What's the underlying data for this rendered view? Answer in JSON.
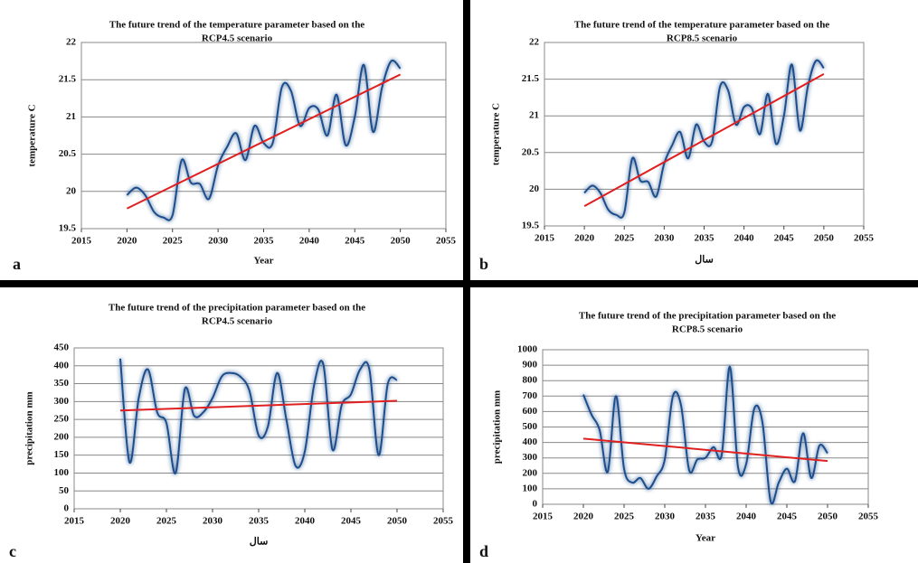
{
  "chart_data": [
    {
      "type": "line",
      "label": "a",
      "title": [
        "The future trend of the temperature parameter based on the",
        "RCP4.5 scenario"
      ],
      "x_label": "Year",
      "y_label": "temperature C",
      "x": [
        2020,
        2021,
        2022,
        2023,
        2024,
        2025,
        2026,
        2027,
        2028,
        2029,
        2030,
        2031,
        2032,
        2033,
        2034,
        2035,
        2036,
        2037,
        2038,
        2039,
        2040,
        2041,
        2042,
        2043,
        2044,
        2045,
        2046,
        2047,
        2048,
        2049,
        2050
      ],
      "series": [
        {
          "color": "#1f4e8c",
          "values": [
            19.95,
            20.05,
            19.95,
            19.72,
            19.65,
            19.68,
            20.42,
            20.12,
            20.1,
            19.9,
            20.35,
            20.6,
            20.78,
            20.42,
            20.88,
            20.65,
            20.65,
            21.4,
            21.35,
            20.88,
            21.12,
            21.1,
            20.75,
            21.3,
            20.62,
            21.0,
            21.7,
            20.8,
            21.4,
            21.75,
            21.65
          ]
        }
      ],
      "trend": {
        "color": "#e02020",
        "x": [
          2020,
          2050
        ],
        "values": [
          19.77,
          21.57
        ]
      },
      "xlim": [
        2015,
        2055
      ],
      "xticks": [
        2015,
        2020,
        2025,
        2030,
        2035,
        2040,
        2045,
        2050,
        2055
      ],
      "ylim": [
        19.5,
        22
      ],
      "yticks": [
        19.5,
        20,
        20.5,
        21,
        21.5,
        22
      ],
      "grid": true
    },
    {
      "type": "line",
      "label": "b",
      "title": [
        "The future trend of the temperature parameter based on the",
        "RCP8.5 scenario"
      ],
      "x_label": "سال",
      "y_label": "temperature C",
      "x": [
        2020,
        2021,
        2022,
        2023,
        2024,
        2025,
        2026,
        2027,
        2028,
        2029,
        2030,
        2031,
        2032,
        2033,
        2034,
        2035,
        2036,
        2037,
        2038,
        2039,
        2040,
        2041,
        2042,
        2043,
        2044,
        2045,
        2046,
        2047,
        2048,
        2049,
        2050
      ],
      "series": [
        {
          "color": "#1f4e8c",
          "values": [
            19.95,
            20.05,
            19.95,
            19.72,
            19.65,
            19.68,
            20.42,
            20.12,
            20.1,
            19.9,
            20.35,
            20.6,
            20.78,
            20.42,
            20.88,
            20.65,
            20.65,
            21.4,
            21.35,
            20.88,
            21.12,
            21.1,
            20.75,
            21.3,
            20.62,
            21.0,
            21.7,
            20.8,
            21.4,
            21.75,
            21.65
          ]
        }
      ],
      "trend": {
        "color": "#e02020",
        "x": [
          2020,
          2050
        ],
        "values": [
          19.77,
          21.57
        ]
      },
      "xlim": [
        2015,
        2055
      ],
      "xticks": [
        2015,
        2020,
        2025,
        2030,
        2035,
        2040,
        2045,
        2050,
        2055
      ],
      "ylim": [
        19.5,
        22
      ],
      "yticks": [
        19.5,
        20,
        20.5,
        21,
        21.5,
        22
      ],
      "grid": true
    },
    {
      "type": "line",
      "label": "c",
      "title": [
        "The future trend of the precipitation parameter based on the",
        "RCP4.5 scenario"
      ],
      "x_label": "سال",
      "y_label": "precipitation mm",
      "x": [
        2020,
        2021,
        2022,
        2023,
        2024,
        2025,
        2026,
        2027,
        2028,
        2029,
        2030,
        2031,
        2032,
        2033,
        2034,
        2035,
        2036,
        2037,
        2038,
        2039,
        2040,
        2041,
        2042,
        2043,
        2044,
        2045,
        2046,
        2047,
        2048,
        2049,
        2050
      ],
      "series": [
        {
          "color": "#1f4e8c",
          "values": [
            420,
            130,
            310,
            390,
            270,
            240,
            100,
            335,
            260,
            270,
            310,
            370,
            380,
            370,
            330,
            205,
            230,
            380,
            250,
            120,
            160,
            345,
            405,
            165,
            290,
            320,
            390,
            390,
            150,
            350,
            360
          ]
        }
      ],
      "trend": {
        "color": "#e02020",
        "x": [
          2020,
          2050
        ],
        "values": [
          275,
          302
        ]
      },
      "xlim": [
        2015,
        2055
      ],
      "xticks": [
        2015,
        2020,
        2025,
        2030,
        2035,
        2040,
        2045,
        2050,
        2055
      ],
      "ylim": [
        0,
        450
      ],
      "yticks": [
        0,
        50,
        100,
        150,
        200,
        250,
        300,
        350,
        400,
        450
      ],
      "grid": true
    },
    {
      "type": "line",
      "label": "d",
      "title": [
        "The future trend of the precipitation parameter based on the",
        "RCP8.5 scenario"
      ],
      "x_label": "Year",
      "y_label": "precipitation mm",
      "x": [
        2020,
        2021,
        2022,
        2023,
        2024,
        2025,
        2026,
        2027,
        2028,
        2029,
        2030,
        2031,
        2032,
        2033,
        2034,
        2035,
        2036,
        2037,
        2038,
        2039,
        2040,
        2041,
        2042,
        2043,
        2044,
        2045,
        2046,
        2047,
        2048,
        2049,
        2050
      ],
      "series": [
        {
          "color": "#1f4e8c",
          "values": [
            710,
            580,
            480,
            210,
            700,
            230,
            140,
            170,
            100,
            180,
            290,
            700,
            640,
            220,
            290,
            300,
            370,
            320,
            890,
            240,
            260,
            620,
            530,
            20,
            140,
            230,
            150,
            460,
            170,
            380,
            330
          ]
        }
      ],
      "trend": {
        "color": "#e02020",
        "x": [
          2020,
          2050
        ],
        "values": [
          425,
          280
        ]
      },
      "xlim": [
        2015,
        2055
      ],
      "xticks": [
        2015,
        2020,
        2025,
        2030,
        2035,
        2040,
        2045,
        2050,
        2055
      ],
      "ylim": [
        0,
        1000
      ],
      "yticks": [
        0,
        100,
        200,
        300,
        400,
        500,
        600,
        700,
        800,
        900,
        1000
      ],
      "grid": true
    }
  ]
}
